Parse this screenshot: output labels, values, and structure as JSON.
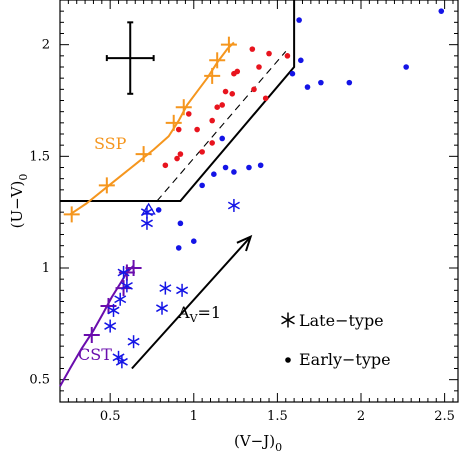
{
  "chart_data": {
    "type": "scatter",
    "xlabel": "(V−J)",
    "xlabel_sub": "0",
    "ylabel": "(U−V)",
    "ylabel_sub": "0",
    "xlim": [
      0.2,
      2.58
    ],
    "ylim": [
      0.4,
      2.2
    ],
    "xticks": [
      {
        "v": 0.5,
        "label": "0.5"
      },
      {
        "v": 1.0,
        "label": "1"
      },
      {
        "v": 1.5,
        "label": "1.5"
      },
      {
        "v": 2.0,
        "label": "2"
      },
      {
        "v": 2.5,
        "label": "2.5"
      }
    ],
    "yticks": [
      {
        "v": 0.5,
        "label": "0.5"
      },
      {
        "v": 1.0,
        "label": "1"
      },
      {
        "v": 1.5,
        "label": "1.5"
      },
      {
        "v": 2.0,
        "label": "2"
      }
    ],
    "colors": {
      "ssp": "#f5961e",
      "cst": "#6a0dad",
      "red": "#e8141e",
      "blue": "#1414e6",
      "black": "#000000"
    },
    "ssp_track": [
      [
        0.26,
        1.24
      ],
      [
        0.36,
        1.29
      ],
      [
        0.46,
        1.35
      ],
      [
        0.56,
        1.41
      ],
      [
        0.66,
        1.47
      ],
      [
        0.76,
        1.53
      ],
      [
        0.85,
        1.59
      ],
      [
        0.91,
        1.66
      ],
      [
        0.96,
        1.73
      ],
      [
        1.02,
        1.79
      ],
      [
        1.08,
        1.85
      ],
      [
        1.14,
        1.92
      ],
      [
        1.2,
        1.98
      ],
      [
        1.24,
        2.01
      ]
    ],
    "ssp_markers": [
      [
        0.27,
        1.24
      ],
      [
        0.48,
        1.37
      ],
      [
        0.7,
        1.51
      ],
      [
        0.88,
        1.65
      ],
      [
        0.94,
        1.72
      ],
      [
        1.11,
        1.86
      ],
      [
        1.14,
        1.93
      ],
      [
        1.21,
        2.0
      ]
    ],
    "cst_track": [
      [
        0.2,
        0.47
      ],
      [
        0.26,
        0.55
      ],
      [
        0.33,
        0.64
      ],
      [
        0.4,
        0.72
      ],
      [
        0.46,
        0.8
      ],
      [
        0.51,
        0.87
      ],
      [
        0.56,
        0.93
      ],
      [
        0.6,
        0.98
      ],
      [
        0.64,
        1.01
      ]
    ],
    "cst_markers": [
      [
        0.39,
        0.7
      ],
      [
        0.49,
        0.83
      ],
      [
        0.58,
        0.91
      ],
      [
        0.6,
        0.98
      ],
      [
        0.64,
        1.0
      ]
    ],
    "early_type_red": [
      [
        0.83,
        1.46
      ],
      [
        0.9,
        1.49
      ],
      [
        0.92,
        1.51
      ],
      [
        0.91,
        1.62
      ],
      [
        0.97,
        1.69
      ],
      [
        1.02,
        1.62
      ],
      [
        1.05,
        1.52
      ],
      [
        1.11,
        1.56
      ],
      [
        1.11,
        1.66
      ],
      [
        1.14,
        1.72
      ],
      [
        1.17,
        1.73
      ],
      [
        1.19,
        1.79
      ],
      [
        1.23,
        1.78
      ],
      [
        1.24,
        1.87
      ],
      [
        1.26,
        1.88
      ],
      [
        1.36,
        1.8
      ],
      [
        1.39,
        1.9
      ],
      [
        1.35,
        1.98
      ],
      [
        1.45,
        1.96
      ],
      [
        1.43,
        1.76
      ],
      [
        1.56,
        1.95
      ]
    ],
    "early_type_blue": [
      [
        0.79,
        1.26
      ],
      [
        0.92,
        1.2
      ],
      [
        0.91,
        1.09
      ],
      [
        1.0,
        1.12
      ],
      [
        1.05,
        1.37
      ],
      [
        1.12,
        1.42
      ],
      [
        1.17,
        1.58
      ],
      [
        1.19,
        1.45
      ],
      [
        1.24,
        1.43
      ],
      [
        1.33,
        1.45
      ],
      [
        1.4,
        1.46
      ],
      [
        1.59,
        1.87
      ],
      [
        1.63,
        2.11
      ],
      [
        1.64,
        1.93
      ],
      [
        1.68,
        1.81
      ],
      [
        1.76,
        1.83
      ],
      [
        1.93,
        1.83
      ],
      [
        2.27,
        1.9
      ],
      [
        2.48,
        2.15
      ]
    ],
    "late_type_blue": [
      [
        0.5,
        0.74
      ],
      [
        0.52,
        0.81
      ],
      [
        0.55,
        0.6
      ],
      [
        0.57,
        0.58
      ],
      [
        0.56,
        0.86
      ],
      [
        0.58,
        0.98
      ],
      [
        0.6,
        0.92
      ],
      [
        0.64,
        0.67
      ],
      [
        0.72,
        1.2
      ],
      [
        0.72,
        1.25
      ],
      [
        0.81,
        0.82
      ],
      [
        0.83,
        0.91
      ],
      [
        0.93,
        0.9
      ],
      [
        1.24,
        1.28
      ]
    ],
    "late_type_triangle": [
      [
        0.73,
        1.26
      ]
    ],
    "selection_boundary": [
      [
        0.2,
        1.3
      ],
      [
        0.92,
        1.3
      ],
      [
        1.6,
        1.9
      ],
      [
        1.6,
        2.2
      ]
    ],
    "selection_dashed": [
      [
        0.78,
        1.3
      ],
      [
        1.55,
        1.97
      ]
    ],
    "reddening_vector": {
      "from": [
        0.63,
        0.55
      ],
      "to": [
        1.34,
        1.14
      ]
    },
    "error_bar": {
      "x": 0.62,
      "y": 1.94,
      "xerr": 0.14,
      "yerr": 0.16
    },
    "labels": {
      "ssp": "SSP",
      "cst": "CST",
      "av": "A",
      "av_sub": "V",
      "av_rest": "=1",
      "late_type": "Late−type",
      "early_type": "Early−type"
    }
  }
}
